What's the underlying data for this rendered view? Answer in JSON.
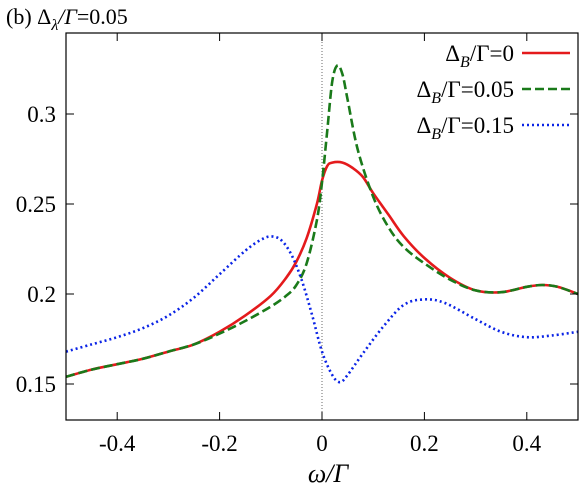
{
  "chart_data": {
    "type": "line",
    "panel_label": "(b) Δ_λ/Γ=0.05",
    "title": "(b) Δλ/Γ=0.05",
    "xlabel": "ω/Γ",
    "ylabel": "",
    "xlim": [
      -0.5,
      0.5
    ],
    "ylim": [
      0.13,
      0.345
    ],
    "xticks": [
      -0.4,
      -0.2,
      0,
      0.2,
      0.4
    ],
    "xtick_labels": [
      "-0.4",
      "-0.2",
      "0",
      "0.2",
      "0.4"
    ],
    "yticks": [
      0.15,
      0.2,
      0.25,
      0.3
    ],
    "ytick_labels": [
      "0.15",
      "0.2",
      "0.25",
      "0.3"
    ],
    "reference_line": {
      "x": 0,
      "style": "dotted"
    },
    "grid": false,
    "legend_position": "top-right",
    "series": [
      {
        "name": "ΔB/Γ=0",
        "color": "#e41a1c",
        "dash": "solid",
        "points": [
          [
            -0.5,
            0.154
          ],
          [
            -0.45,
            0.158
          ],
          [
            -0.4,
            0.161
          ],
          [
            -0.35,
            0.164
          ],
          [
            -0.3,
            0.168
          ],
          [
            -0.25,
            0.172
          ],
          [
            -0.2,
            0.179
          ],
          [
            -0.15,
            0.188
          ],
          [
            -0.1,
            0.199
          ],
          [
            -0.07,
            0.209
          ],
          [
            -0.05,
            0.218
          ],
          [
            -0.03,
            0.231
          ],
          [
            -0.01,
            0.25
          ],
          [
            0.0,
            0.263
          ],
          [
            0.01,
            0.271
          ],
          [
            0.02,
            0.273
          ],
          [
            0.04,
            0.273
          ],
          [
            0.06,
            0.27
          ],
          [
            0.08,
            0.265
          ],
          [
            0.1,
            0.256
          ],
          [
            0.13,
            0.244
          ],
          [
            0.16,
            0.232
          ],
          [
            0.2,
            0.22
          ],
          [
            0.25,
            0.209
          ],
          [
            0.3,
            0.202
          ],
          [
            0.35,
            0.201
          ],
          [
            0.4,
            0.204
          ],
          [
            0.43,
            0.205
          ],
          [
            0.46,
            0.204
          ],
          [
            0.5,
            0.2
          ]
        ]
      },
      {
        "name": "ΔB/Γ=0.05",
        "color": "#1a7a1a",
        "dash": "dashed",
        "points": [
          [
            -0.5,
            0.154
          ],
          [
            -0.45,
            0.158
          ],
          [
            -0.4,
            0.161
          ],
          [
            -0.35,
            0.164
          ],
          [
            -0.3,
            0.168
          ],
          [
            -0.25,
            0.172
          ],
          [
            -0.2,
            0.178
          ],
          [
            -0.15,
            0.185
          ],
          [
            -0.1,
            0.193
          ],
          [
            -0.07,
            0.199
          ],
          [
            -0.05,
            0.205
          ],
          [
            -0.03,
            0.217
          ],
          [
            -0.01,
            0.241
          ],
          [
            0.0,
            0.262
          ],
          [
            0.01,
            0.29
          ],
          [
            0.02,
            0.318
          ],
          [
            0.03,
            0.327
          ],
          [
            0.04,
            0.322
          ],
          [
            0.05,
            0.308
          ],
          [
            0.07,
            0.28
          ],
          [
            0.1,
            0.254
          ],
          [
            0.13,
            0.237
          ],
          [
            0.16,
            0.226
          ],
          [
            0.2,
            0.217
          ],
          [
            0.25,
            0.208
          ],
          [
            0.3,
            0.202
          ],
          [
            0.35,
            0.201
          ],
          [
            0.4,
            0.204
          ],
          [
            0.43,
            0.205
          ],
          [
            0.46,
            0.204
          ],
          [
            0.5,
            0.2
          ]
        ]
      },
      {
        "name": "ΔB/Γ=0.15",
        "color": "#0b24e6",
        "dash": "dotted",
        "points": [
          [
            -0.5,
            0.168
          ],
          [
            -0.45,
            0.172
          ],
          [
            -0.4,
            0.176
          ],
          [
            -0.35,
            0.181
          ],
          [
            -0.3,
            0.188
          ],
          [
            -0.25,
            0.198
          ],
          [
            -0.2,
            0.211
          ],
          [
            -0.15,
            0.224
          ],
          [
            -0.12,
            0.23
          ],
          [
            -0.1,
            0.232
          ],
          [
            -0.08,
            0.23
          ],
          [
            -0.06,
            0.222
          ],
          [
            -0.04,
            0.208
          ],
          [
            -0.02,
            0.189
          ],
          [
            0.0,
            0.168
          ],
          [
            0.02,
            0.155
          ],
          [
            0.035,
            0.151
          ],
          [
            0.05,
            0.155
          ],
          [
            0.08,
            0.167
          ],
          [
            0.12,
            0.182
          ],
          [
            0.16,
            0.194
          ],
          [
            0.2,
            0.197
          ],
          [
            0.24,
            0.195
          ],
          [
            0.3,
            0.186
          ],
          [
            0.35,
            0.179
          ],
          [
            0.4,
            0.176
          ],
          [
            0.45,
            0.177
          ],
          [
            0.5,
            0.179
          ]
        ]
      }
    ]
  }
}
